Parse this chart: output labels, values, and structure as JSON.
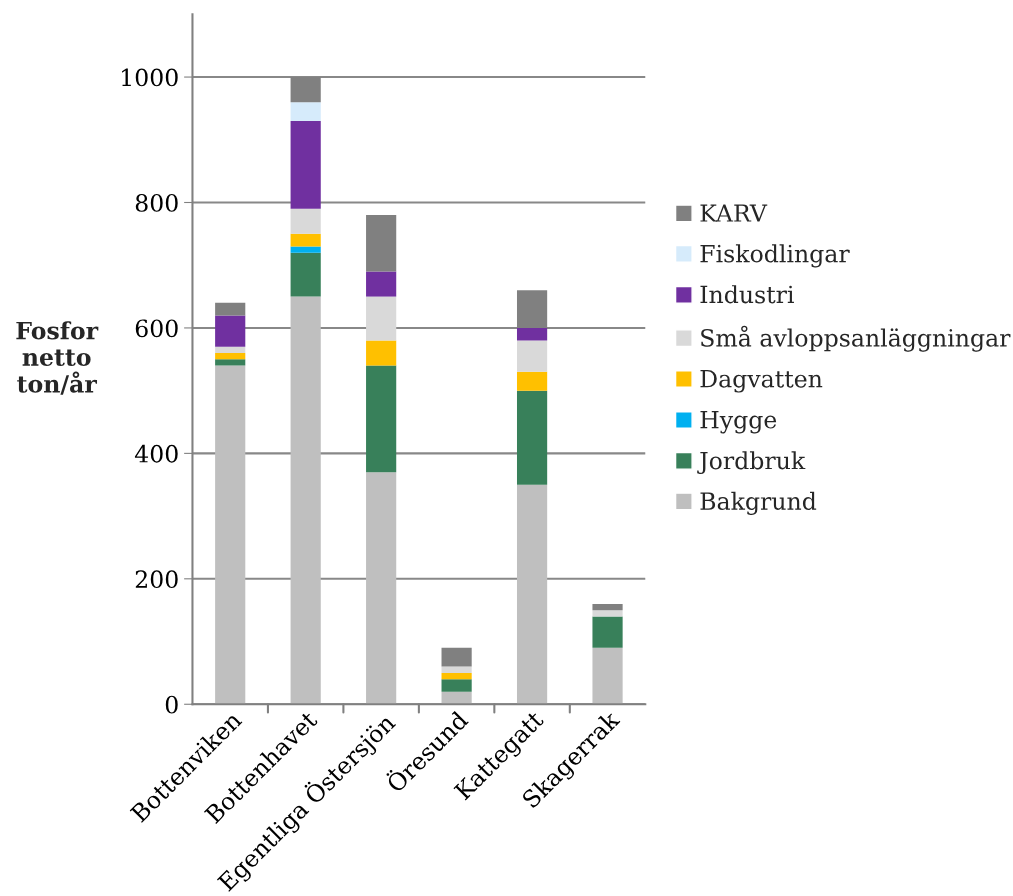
{
  "chart_data": {
    "type": "bar",
    "stacked": true,
    "categories": [
      "Bottenviken",
      "Bottenhavet",
      "Egentliga Östersjön",
      "Öresund",
      "Kattegatt",
      "Skagerrak"
    ],
    "ylabel": "Fosfor\nnetto\nton/år",
    "ylim": [
      0,
      1100
    ],
    "yticks": [
      0,
      200,
      400,
      600,
      800,
      1000
    ],
    "grid": "y",
    "legend": "right",
    "series": [
      {
        "name": "Bakgrund",
        "color": "#bfbfbf",
        "values": [
          540,
          650,
          370,
          20,
          350,
          90
        ]
      },
      {
        "name": "Jordbruk",
        "color": "#38805a",
        "values": [
          10,
          70,
          170,
          20,
          150,
          50
        ]
      },
      {
        "name": "Hygge",
        "color": "#00b0f0",
        "values": [
          0,
          10,
          0,
          0,
          0,
          0
        ]
      },
      {
        "name": "Dagvatten",
        "color": "#ffc000",
        "values": [
          10,
          20,
          40,
          10,
          30,
          0
        ]
      },
      {
        "name": "Små avloppsanläggningar",
        "color": "#d9d9d9",
        "values": [
          10,
          40,
          70,
          10,
          50,
          10
        ]
      },
      {
        "name": "Industri",
        "color": "#7030a0",
        "values": [
          50,
          140,
          40,
          0,
          20,
          0
        ]
      },
      {
        "name": "Fiskodlingar",
        "color": "#d6ebfb",
        "values": [
          0,
          30,
          0,
          0,
          0,
          0
        ]
      },
      {
        "name": "KARV",
        "color": "#808080",
        "values": [
          20,
          40,
          90,
          30,
          60,
          10
        ]
      }
    ]
  }
}
